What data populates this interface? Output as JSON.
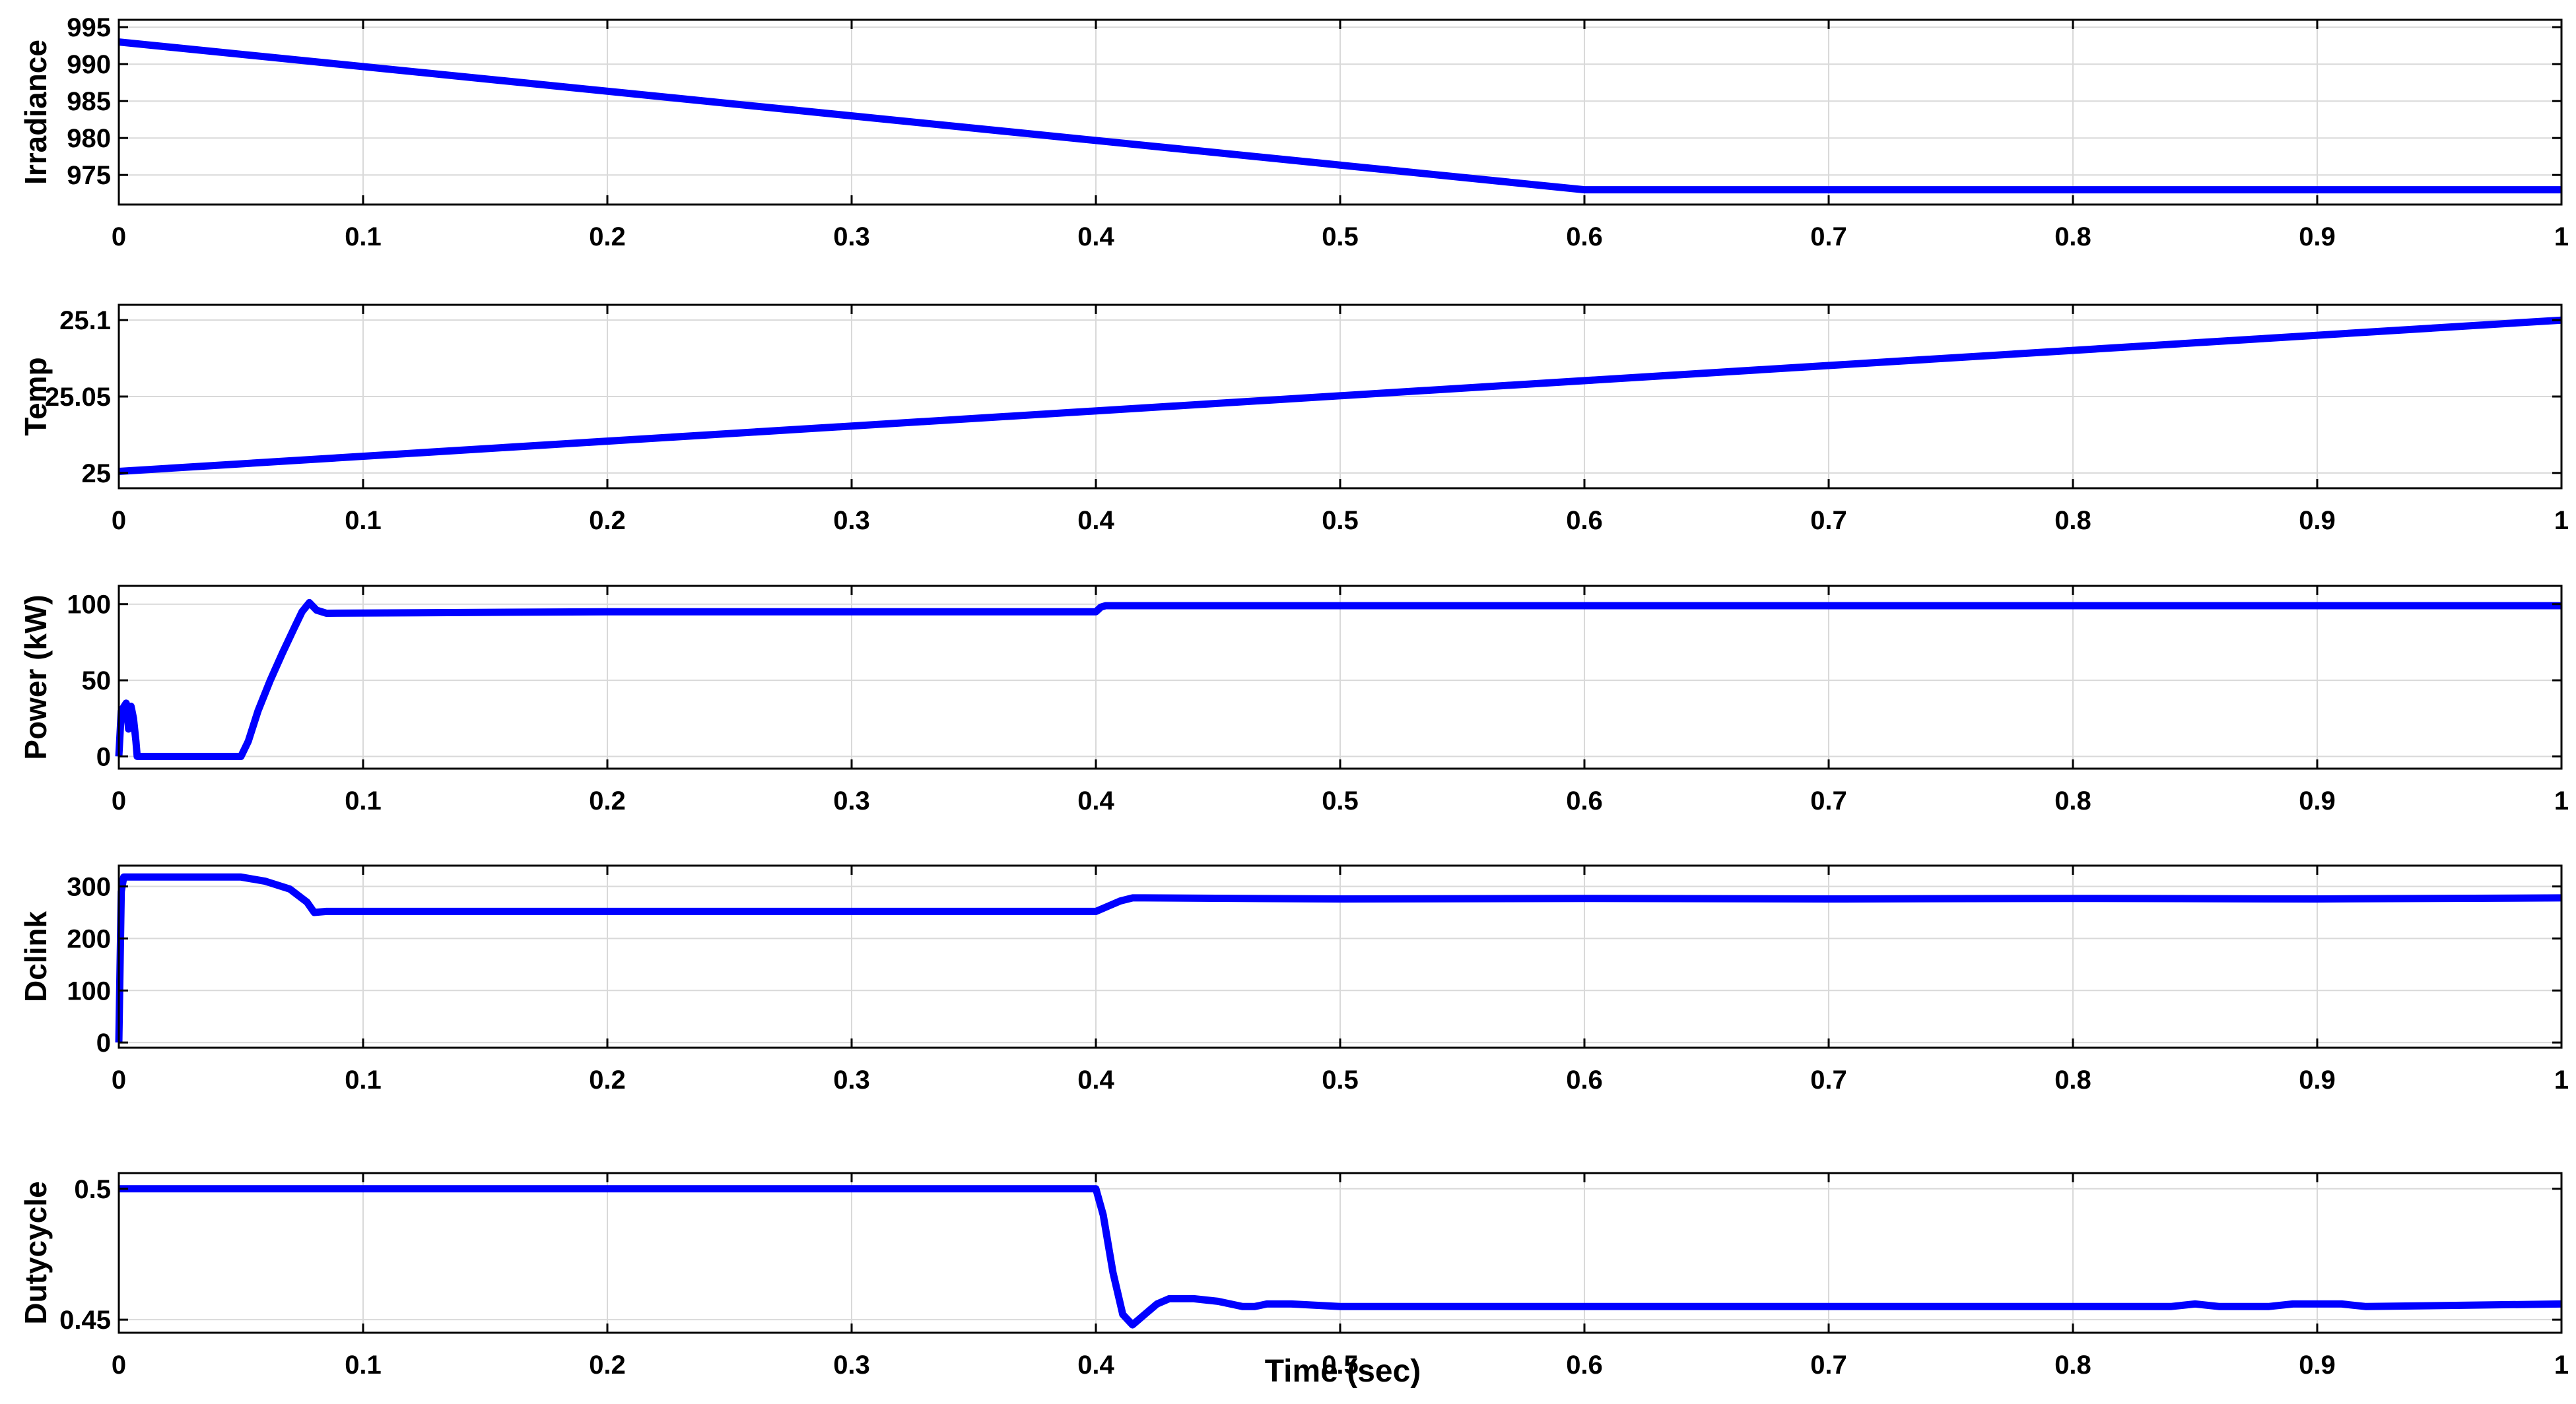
{
  "figure": {
    "xlabel": "Time (sec)"
  },
  "colors": {
    "line": "#0000ff",
    "grid": "#d9d9d9",
    "frame": "#000000",
    "background": "#ffffff"
  },
  "chart_data": [
    {
      "type": "line",
      "ylabel": "Irradiance",
      "xlim": [
        0,
        1
      ],
      "ylim": [
        971,
        996
      ],
      "xticks": [
        "0",
        "0.1",
        "0.2",
        "0.3",
        "0.4",
        "0.5",
        "0.6",
        "0.7",
        "0.8",
        "0.9",
        "1"
      ],
      "yticks": [
        "975",
        "980",
        "985",
        "990",
        "995"
      ],
      "grid": true,
      "series": [
        {
          "x": [
            0,
            0.6,
            1
          ],
          "y": [
            993,
            973,
            973
          ]
        }
      ]
    },
    {
      "type": "line",
      "ylabel": "Temp",
      "xlim": [
        0,
        1
      ],
      "ylim": [
        24.99,
        25.11
      ],
      "xticks": [
        "0",
        "0.1",
        "0.2",
        "0.3",
        "0.4",
        "0.5",
        "0.6",
        "0.7",
        "0.8",
        "0.9",
        "1"
      ],
      "yticks": [
        "25",
        "25.05",
        "25.1"
      ],
      "grid": true,
      "series": [
        {
          "x": [
            0,
            1
          ],
          "y": [
            25.001,
            25.1
          ]
        }
      ]
    },
    {
      "type": "line",
      "ylabel": "Power (kW)",
      "xlim": [
        0,
        1
      ],
      "ylim": [
        -8,
        112
      ],
      "xticks": [
        "0",
        "0.1",
        "0.2",
        "0.3",
        "0.4",
        "0.5",
        "0.6",
        "0.7",
        "0.8",
        "0.9",
        "1"
      ],
      "yticks": [
        "0",
        "50",
        "100"
      ],
      "grid": true,
      "series": [
        {
          "x": [
            0,
            0.001,
            0.003,
            0.004,
            0.005,
            0.006,
            0.007,
            0.0075,
            0.05,
            0.053,
            0.057,
            0.062,
            0.067,
            0.072,
            0.075,
            0.078,
            0.081,
            0.085,
            0.2,
            0.3,
            0.4,
            0.402,
            0.404,
            0.6,
            0.8,
            1
          ],
          "y": [
            0,
            30,
            35,
            18,
            33,
            25,
            10,
            0,
            0,
            10,
            30,
            50,
            68,
            85,
            95,
            101,
            96,
            94,
            95,
            95,
            95,
            98,
            99,
            99,
            99,
            99
          ]
        }
      ]
    },
    {
      "type": "line",
      "ylabel": "Dclink",
      "xlim": [
        0,
        1
      ],
      "ylim": [
        -10,
        340
      ],
      "xticks": [
        "0",
        "0.1",
        "0.2",
        "0.3",
        "0.4",
        "0.5",
        "0.6",
        "0.7",
        "0.8",
        "0.9",
        "1"
      ],
      "yticks": [
        "0",
        "100",
        "200",
        "300"
      ],
      "grid": true,
      "series": [
        {
          "x": [
            0,
            0.001,
            0.002,
            0.05,
            0.06,
            0.07,
            0.077,
            0.08,
            0.085,
            0.2,
            0.3,
            0.4,
            0.405,
            0.41,
            0.415,
            0.42,
            0.5,
            0.6,
            0.7,
            0.8,
            0.9,
            1
          ],
          "y": [
            0,
            290,
            318,
            318,
            310,
            295,
            270,
            250,
            252,
            252,
            252,
            252,
            262,
            272,
            278,
            278,
            276,
            277,
            276,
            277,
            276,
            278
          ]
        }
      ]
    },
    {
      "type": "line",
      "ylabel": "Dutycycle",
      "xlim": [
        0,
        1
      ],
      "ylim": [
        0.445,
        0.506
      ],
      "xticks": [
        "0",
        "0.1",
        "0.2",
        "0.3",
        "0.4",
        "0.5",
        "0.6",
        "0.7",
        "0.8",
        "0.9",
        "1"
      ],
      "yticks": [
        "0.45",
        "0.5"
      ],
      "grid": true,
      "series": [
        {
          "x": [
            0,
            0.4,
            0.403,
            0.407,
            0.411,
            0.415,
            0.42,
            0.425,
            0.43,
            0.44,
            0.45,
            0.46,
            0.465,
            0.47,
            0.48,
            0.5,
            0.7,
            0.84,
            0.85,
            0.86,
            0.88,
            0.89,
            0.9,
            0.91,
            0.92,
            1
          ],
          "y": [
            0.5,
            0.5,
            0.49,
            0.468,
            0.452,
            0.448,
            0.452,
            0.456,
            0.458,
            0.458,
            0.457,
            0.455,
            0.455,
            0.456,
            0.456,
            0.455,
            0.455,
            0.455,
            0.456,
            0.455,
            0.455,
            0.456,
            0.456,
            0.456,
            0.455,
            0.456
          ]
        }
      ]
    }
  ]
}
